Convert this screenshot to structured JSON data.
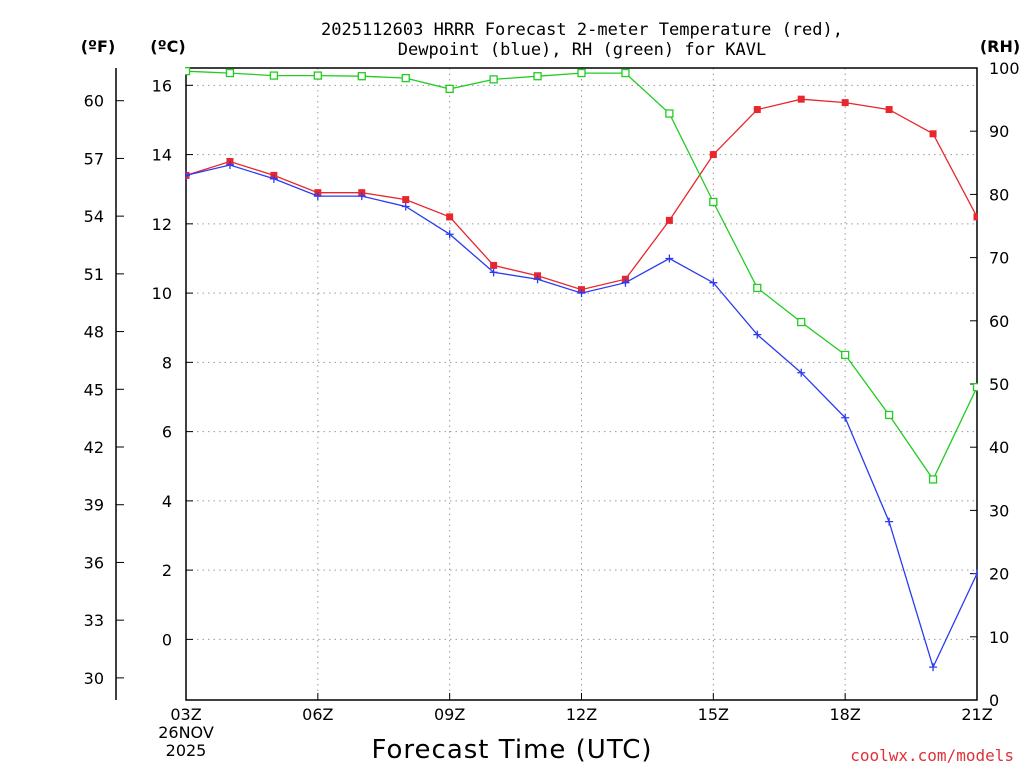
{
  "chart_data": {
    "type": "line",
    "title": "2025112603 HRRR Forecast 2-meter Temperature (red),",
    "subtitle": "Dewpoint (blue), RH (green) for KAVL",
    "xlabel": "Forecast Time (UTC)",
    "credit": "coolwx.com/models",
    "left_unit_f": "(ºF)",
    "left_unit_c": "(ºC)",
    "right_unit": "(RH)",
    "x_start_date": "26NOV",
    "x_start_year": "2025",
    "x_hours": [
      3,
      4,
      5,
      6,
      7,
      8,
      9,
      10,
      11,
      12,
      13,
      14,
      15,
      16,
      17,
      18,
      19,
      20,
      21
    ],
    "x_ticks": [
      {
        "hour": 3,
        "label": "03Z"
      },
      {
        "hour": 6,
        "label": "06Z"
      },
      {
        "hour": 9,
        "label": "09Z"
      },
      {
        "hour": 12,
        "label": "12Z"
      },
      {
        "hour": 15,
        "label": "15Z"
      },
      {
        "hour": 18,
        "label": "18Z"
      },
      {
        "hour": 21,
        "label": "21Z"
      }
    ],
    "xlim": [
      3,
      21
    ],
    "ylim_c": [
      -1.75,
      16.5
    ],
    "ylim_rh": [
      0,
      100
    ],
    "c_ticks": [
      "0",
      "2",
      "4",
      "6",
      "8",
      "10",
      "12",
      "14",
      "16"
    ],
    "c_tick_values": [
      0,
      2,
      4,
      6,
      8,
      10,
      12,
      14,
      16
    ],
    "f_ticks": [
      "30",
      "33",
      "36",
      "39",
      "42",
      "45",
      "48",
      "51",
      "54",
      "57",
      "60"
    ],
    "f_tick_values": [
      30,
      33,
      36,
      39,
      42,
      45,
      48,
      51,
      54,
      57,
      60
    ],
    "rh_ticks": [
      "0",
      "10",
      "20",
      "30",
      "40",
      "50",
      "60",
      "70",
      "80",
      "90",
      "100"
    ],
    "rh_tick_values": [
      0,
      10,
      20,
      30,
      40,
      50,
      60,
      70,
      80,
      90,
      100
    ],
    "series": [
      {
        "name": "2-meter Temperature",
        "color": "#e8262e",
        "marker": "filled-square",
        "axis": "C",
        "values": [
          13.4,
          13.8,
          13.4,
          12.9,
          12.9,
          12.7,
          12.2,
          10.8,
          10.5,
          10.1,
          10.4,
          12.1,
          14.0,
          15.3,
          15.6,
          15.5,
          15.3,
          14.6,
          12.2
        ]
      },
      {
        "name": "Dewpoint",
        "color": "#2b3cf0",
        "marker": "plus",
        "axis": "C",
        "values": [
          13.4,
          13.7,
          13.3,
          12.8,
          12.8,
          12.5,
          11.7,
          10.6,
          10.4,
          10.0,
          10.3,
          11.0,
          10.3,
          8.8,
          7.7,
          6.4,
          3.4,
          -0.8,
          1.9
        ]
      },
      {
        "name": "RH",
        "color": "#22cc22",
        "marker": "open-square",
        "axis": "RH",
        "values": [
          99.5,
          99.2,
          98.8,
          98.8,
          98.7,
          98.4,
          96.7,
          98.2,
          98.7,
          99.2,
          99.2,
          92.8,
          78.8,
          65.2,
          59.8,
          54.6,
          45.1,
          34.9,
          49.5
        ]
      }
    ]
  }
}
